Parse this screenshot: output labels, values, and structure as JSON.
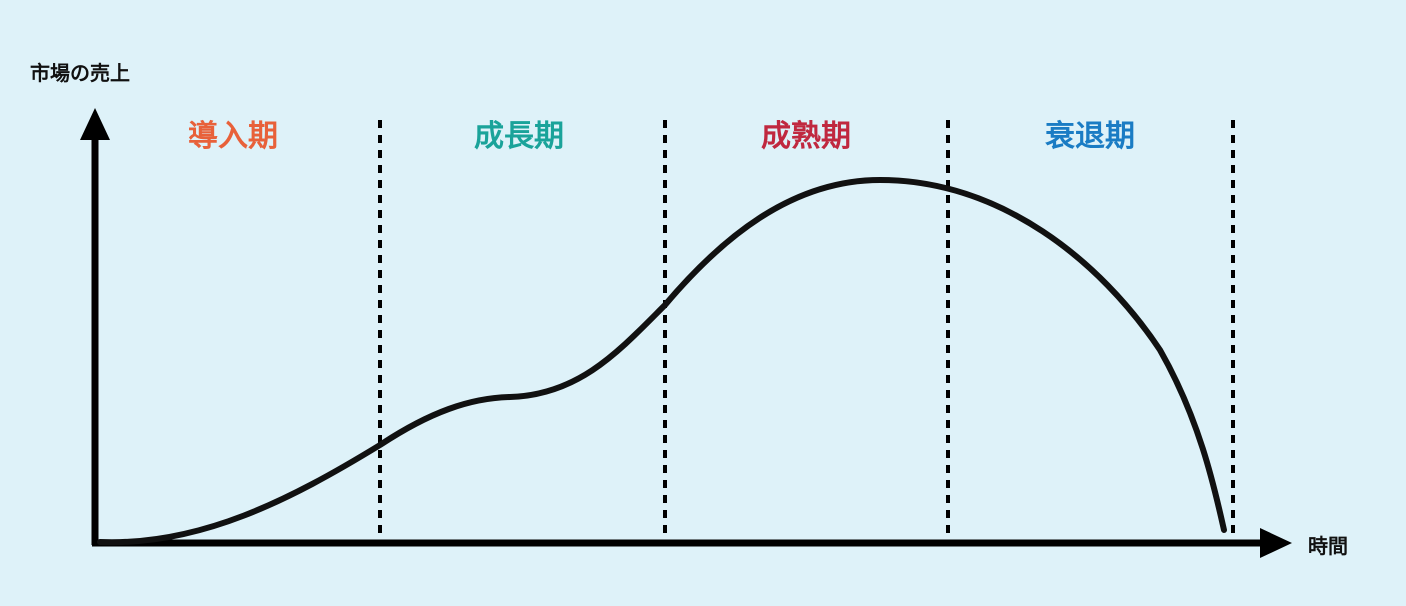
{
  "y_axis_label": "市場の売上",
  "x_axis_label": "時間",
  "stages": [
    {
      "label": "導入期",
      "color": "#e8613a"
    },
    {
      "label": "成長期",
      "color": "#1aa39a"
    },
    {
      "label": "成熟期",
      "color": "#c0283f"
    },
    {
      "label": "衰退期",
      "color": "#1a7cc4"
    }
  ],
  "colors": {
    "background": "#def2f9",
    "axis": "#000000",
    "curve": "#111111"
  }
}
